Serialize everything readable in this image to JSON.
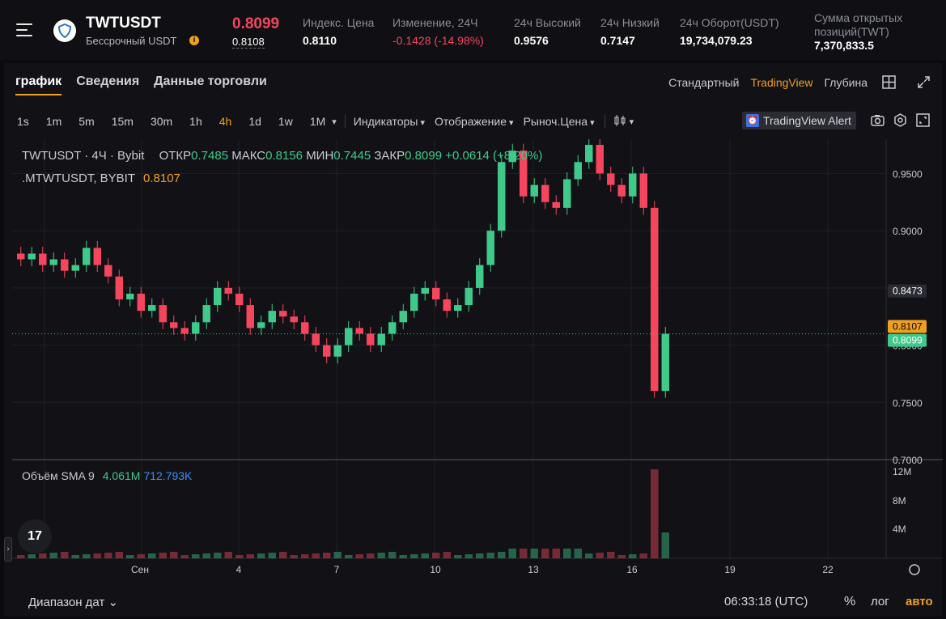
{
  "header": {
    "symbol": "TWTUSDT",
    "subtitle": "Бессрочный USDT",
    "info_icon": "info-icon",
    "last_price": "0.8099",
    "mark_price": "0.8108",
    "stats": [
      {
        "label": "Индекс. Цена",
        "value": "0.8110"
      },
      {
        "label": "Изменение, 24Ч",
        "value": "-0.1428 (-14.98%)"
      },
      {
        "label": "24ч Высокий",
        "value": "0.9576"
      },
      {
        "label": "24ч Низкий",
        "value": "0.7147"
      },
      {
        "label": "24ч Оборот(USDT)",
        "value": "19,734,079.23"
      },
      {
        "label": "Сумма открытых позиций(TWT)",
        "value": "7,370,833.5"
      }
    ],
    "colors": {
      "down": "#f6465d",
      "up": "#3fc98a",
      "accent": "#f0a020"
    }
  },
  "tabs": [
    "график",
    "Сведения",
    "Данные торговли"
  ],
  "views": [
    "Стандартный",
    "TradingView",
    "Глубина"
  ],
  "timeframes": [
    "1s",
    "1m",
    "5m",
    "15m",
    "30m",
    "1h",
    "4h",
    "1d",
    "1w",
    "1M"
  ],
  "active_timeframe": "4h",
  "toolbar_dropdowns": [
    "Индикаторы",
    "Отображение",
    "Рыноч.Цена"
  ],
  "alert_button": "TradingView Alert",
  "legend": {
    "line1_prefix": "TWTUSDT · 4Ч · Bybit",
    "open_label": "ОТКР",
    "open": "0.7485",
    "high_label": "МАКС",
    "high": "0.8156",
    "low_label": "МИН",
    "low": "0.7445",
    "close_label": "ЗАКР",
    "close": "0.8099",
    "change": "+0.0614 (+8.20%)",
    "line2_name": ".MTWTUSDT, BYBIT",
    "line2_value": "0.8107"
  },
  "volume_legend": {
    "label": "Объём SMA 9",
    "v1": "4.061M",
    "v2": "712.793K"
  },
  "price_axis": [
    "0.9500",
    "0.9000",
    "0.8473",
    "0.8107",
    "0.8099",
    "0.8000",
    "0.7500",
    "0.7000"
  ],
  "price_tags": {
    "crosshair": "0.8473",
    "mark": "0.8107",
    "last": "0.8099"
  },
  "volume_axis": [
    "12M",
    "8M",
    "4M"
  ],
  "time_axis": [
    "Сен",
    "4",
    "7",
    "10",
    "13",
    "16",
    "19",
    "22"
  ],
  "footer": {
    "range": "Диапазон дат",
    "clock": "06:33:18 (UTC)",
    "pct": "%",
    "log": "лог",
    "auto": "авто"
  },
  "chart_data": {
    "type": "candlestick",
    "ylim": [
      0.7,
      0.98
    ],
    "candles_close_approx": [
      0.875,
      0.88,
      0.87,
      0.875,
      0.865,
      0.87,
      0.885,
      0.87,
      0.86,
      0.84,
      0.845,
      0.83,
      0.835,
      0.82,
      0.815,
      0.81,
      0.82,
      0.835,
      0.85,
      0.845,
      0.835,
      0.815,
      0.82,
      0.83,
      0.825,
      0.82,
      0.81,
      0.8,
      0.79,
      0.8,
      0.815,
      0.81,
      0.8,
      0.81,
      0.82,
      0.83,
      0.845,
      0.85,
      0.84,
      0.83,
      0.835,
      0.85,
      0.87,
      0.9,
      0.96,
      0.97,
      0.93,
      0.94,
      0.925,
      0.92,
      0.945,
      0.96,
      0.975,
      0.95,
      0.94,
      0.93,
      0.95,
      0.92,
      0.76,
      0.8099
    ]
  }
}
